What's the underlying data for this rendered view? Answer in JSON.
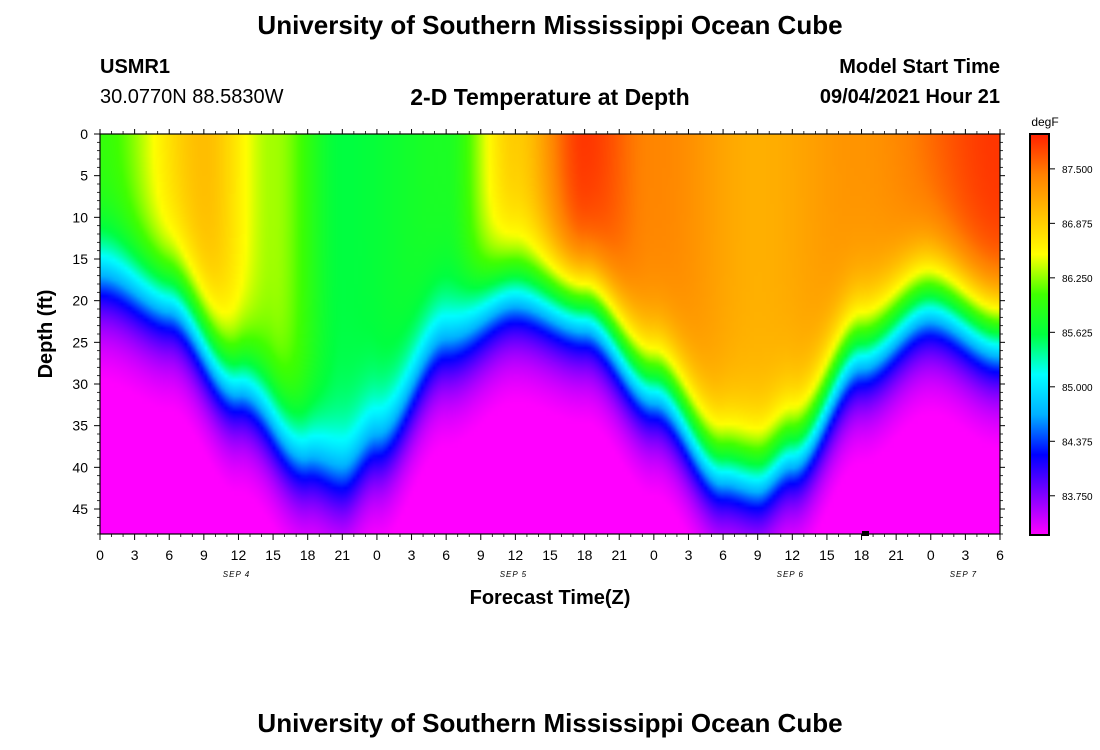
{
  "header": {
    "top_title": "University of Southern Mississippi Ocean Cube",
    "bottom_title": "University of Southern Mississippi Ocean Cube",
    "station_name": "USMR1",
    "station_coords": "30.0770N  88.5830W",
    "subtitle": "2-D Temperature at Depth",
    "model_start_label": "Model Start Time",
    "model_start_value": "09/04/2021 Hour 21"
  },
  "colors": {
    "scale": [
      "#ff00ff",
      "#8000ff",
      "#0000ff",
      "#00b0ff",
      "#00ffff",
      "#00ff40",
      "#40ff00",
      "#ffff00",
      "#ffc000",
      "#ff8000",
      "#ff2000"
    ]
  },
  "chart_data": {
    "type": "heatmap",
    "title": "2-D Temperature at Depth",
    "xlabel": "Forecast Time(Z)",
    "ylabel": "Depth (ft)",
    "colorbar_unit": "degF",
    "x_range_hours": [
      0,
      78
    ],
    "x_tick_labels": [
      "0",
      "3",
      "6",
      "9",
      "12",
      "15",
      "18",
      "21",
      "0",
      "3",
      "6",
      "9",
      "12",
      "15",
      "18",
      "21",
      "0",
      "3",
      "6",
      "9",
      "12",
      "15",
      "18",
      "21",
      "0",
      "3",
      "6"
    ],
    "date_labels": [
      {
        "label": "SEP 4",
        "hour": 12
      },
      {
        "label": "SEP 5",
        "hour": 36
      },
      {
        "label": "SEP 6",
        "hour": 60
      },
      {
        "label": "SEP 7",
        "hour": 75
      }
    ],
    "y_range_ft": [
      0,
      48
    ],
    "y_ticks": [
      0,
      5,
      10,
      15,
      20,
      25,
      30,
      35,
      40,
      45
    ],
    "colorbar_range": [
      83.3,
      87.9
    ],
    "colorbar_ticks": [
      "87.500",
      "86.875",
      "86.250",
      "85.625",
      "85.000",
      "84.375",
      "83.750"
    ],
    "colorbar_tick_values": [
      87.5,
      86.875,
      86.25,
      85.625,
      85.0,
      84.375,
      83.75
    ],
    "thermocline_depth_ft": [
      {
        "hour": 0,
        "depth": 17
      },
      {
        "hour": 6,
        "depth": 20
      },
      {
        "hour": 12,
        "depth": 30
      },
      {
        "hour": 18,
        "depth": 39
      },
      {
        "hour": 21,
        "depth": 41
      },
      {
        "hour": 24,
        "depth": 37
      },
      {
        "hour": 30,
        "depth": 25
      },
      {
        "hour": 36,
        "depth": 19
      },
      {
        "hour": 42,
        "depth": 21
      },
      {
        "hour": 48,
        "depth": 30
      },
      {
        "hour": 54,
        "depth": 40
      },
      {
        "hour": 57,
        "depth": 41
      },
      {
        "hour": 60,
        "depth": 38
      },
      {
        "hour": 66,
        "depth": 26
      },
      {
        "hour": 72,
        "depth": 20
      },
      {
        "hour": 78,
        "depth": 24
      }
    ],
    "surface_temperature_degF": [
      {
        "hour": 0,
        "value": 86.0
      },
      {
        "hour": 9,
        "value": 87.0
      },
      {
        "hour": 15,
        "value": 86.3
      },
      {
        "hour": 21,
        "value": 85.6
      },
      {
        "hour": 30,
        "value": 85.8
      },
      {
        "hour": 36,
        "value": 86.9
      },
      {
        "hour": 42,
        "value": 87.8
      },
      {
        "hour": 48,
        "value": 87.4
      },
      {
        "hour": 57,
        "value": 87.1
      },
      {
        "hour": 66,
        "value": 87.3
      },
      {
        "hour": 78,
        "value": 87.8
      }
    ],
    "bottom_temperature_degF": 83.4
  }
}
